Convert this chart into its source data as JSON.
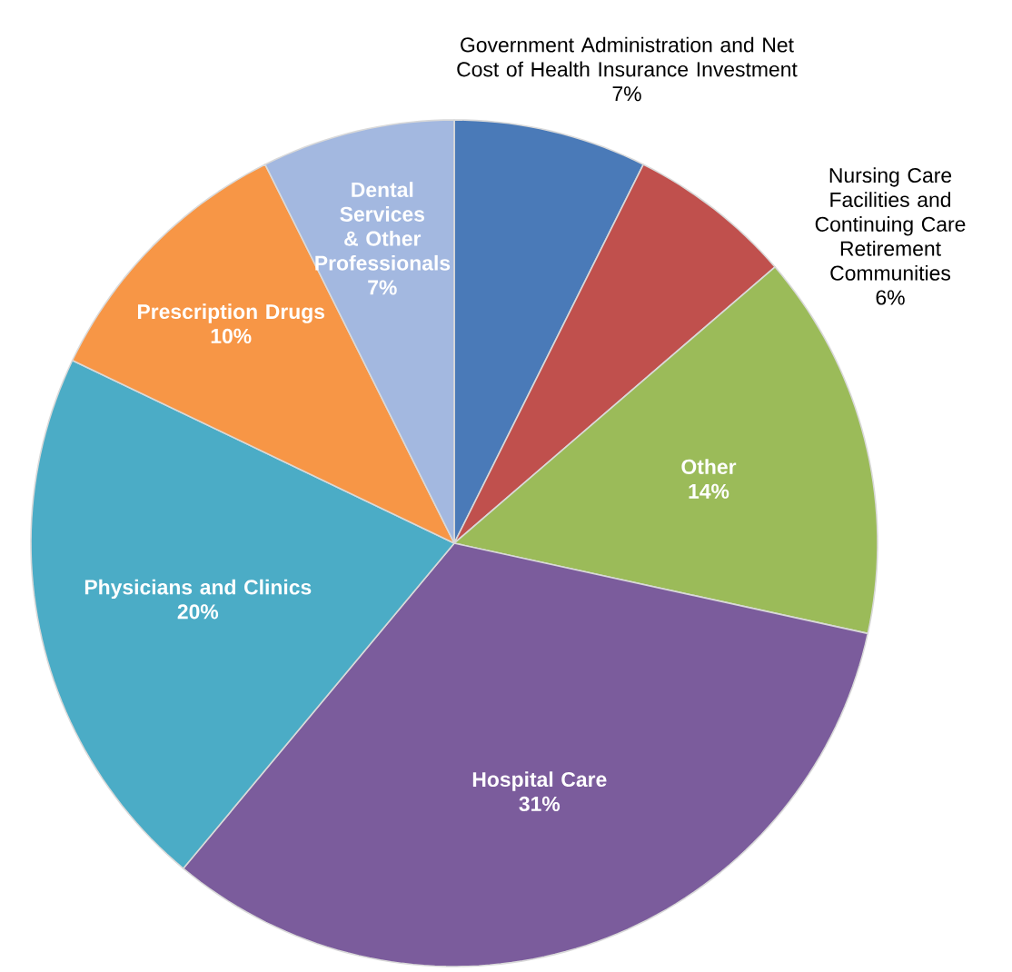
{
  "chart_data": {
    "type": "pie",
    "categories": [
      "Government Administration and Net Cost of Health Insurance Investment",
      "Nursing Care Facilities and Continuing Care Retirement Communities",
      "Other",
      "Hospital Care",
      "Physicians and Clinics",
      "Prescription Drugs",
      "Dental Services & Other Professionals"
    ],
    "values": [
      7,
      6,
      14,
      31,
      20,
      10,
      7
    ],
    "value_labels": [
      "7%",
      "6%",
      "14%",
      "31%",
      "20%",
      "10%",
      "7%"
    ],
    "colors": [
      "#4a7ab8",
      "#c0504d",
      "#9bbb59",
      "#7b5c9c",
      "#4bacc6",
      "#f79646",
      "#a3b8e0"
    ]
  }
}
